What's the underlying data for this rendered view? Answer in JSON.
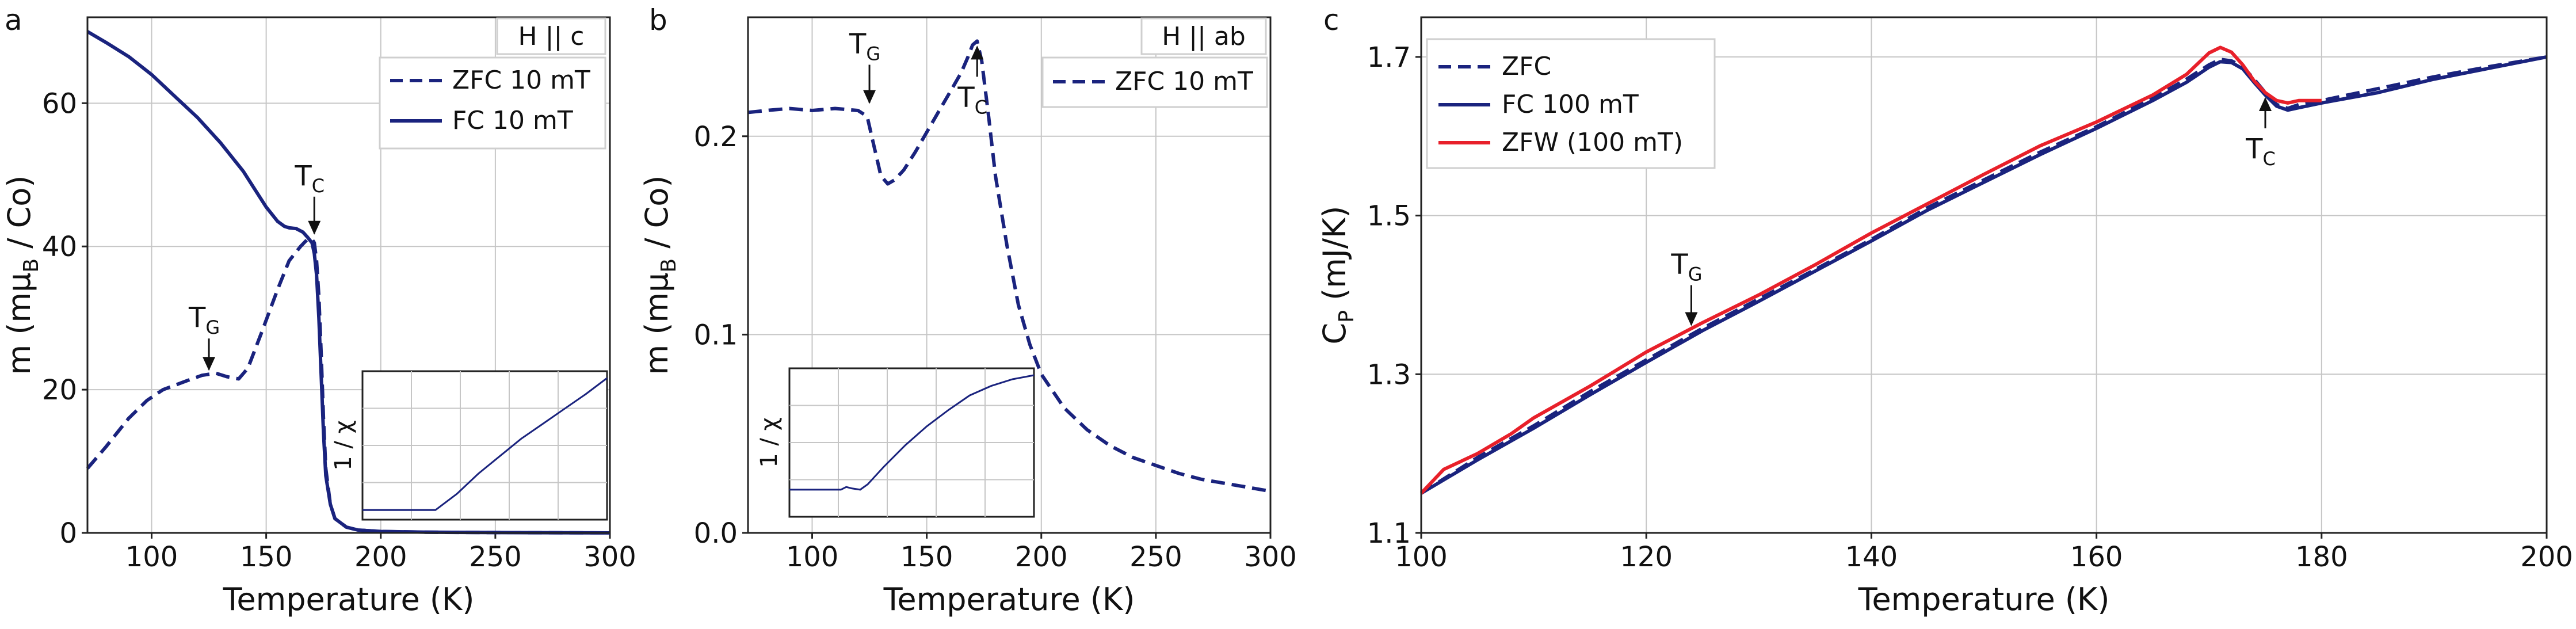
{
  "chart_data": [
    {
      "panel": "a",
      "type": "line",
      "field_label": "H || c",
      "xlabel": "Temperature (K)",
      "ylabel": "m (mμ_B / Co)",
      "ylabel_parts": [
        "m (mμ",
        "B",
        " / Co)"
      ],
      "xlim": [
        72,
        300
      ],
      "ylim": [
        0,
        72
      ],
      "xticks": [
        100,
        150,
        200,
        250,
        300
      ],
      "yticks": [
        0,
        20,
        40,
        60
      ],
      "grid": true,
      "legend": "top-right",
      "series": [
        {
          "name": "ZFC 10 mT",
          "style": "dashed",
          "color": "#1a237e",
          "x": [
            72,
            80,
            90,
            98,
            105,
            115,
            122,
            128,
            133,
            138,
            142,
            148,
            155,
            160,
            165,
            168,
            170,
            171,
            172,
            173,
            174,
            175,
            176,
            178,
            180,
            185,
            190,
            200,
            220,
            250,
            300
          ],
          "y": [
            9,
            12,
            16,
            18.5,
            20,
            21.2,
            22,
            22.3,
            21.8,
            21.5,
            23,
            28,
            34,
            38,
            40,
            41,
            41,
            40.5,
            38,
            33,
            25,
            16,
            9,
            4,
            2,
            0.8,
            0.4,
            0.2,
            0.1,
            0.05,
            0
          ]
        },
        {
          "name": "FC 10 mT",
          "style": "solid",
          "color": "#1a237e",
          "x": [
            72,
            80,
            90,
            100,
            110,
            120,
            130,
            140,
            145,
            150,
            155,
            158,
            160,
            163,
            166,
            168,
            170,
            171,
            172,
            173,
            174,
            175,
            176,
            178,
            180,
            185,
            190,
            200,
            220,
            250,
            300
          ],
          "y": [
            70,
            68.5,
            66.5,
            64,
            61,
            58,
            54.5,
            50.5,
            48,
            45.5,
            43.5,
            42.8,
            42.6,
            42.5,
            42,
            41.3,
            40.5,
            39,
            36,
            30,
            22,
            14,
            8,
            4,
            2,
            0.8,
            0.4,
            0.2,
            0.1,
            0.05,
            0
          ]
        }
      ],
      "annotations": [
        {
          "main": "T",
          "sub": "C",
          "x": 171,
          "y": 41
        },
        {
          "main": "T",
          "sub": "G",
          "x": 125,
          "y": 22
        }
      ],
      "inset": {
        "ylabel": "1 / χ",
        "series": [
          {
            "name": "1 / χ",
            "x": [
              72,
              120,
              140,
              160,
              180,
              200,
              220,
              240,
              260,
              280,
              300
            ],
            "y": [
              0.02,
              0.02,
              0.02,
              0.14,
              0.29,
              0.42,
              0.55,
              0.66,
              0.77,
              0.88,
              1.0
            ]
          }
        ]
      }
    },
    {
      "panel": "b",
      "type": "line",
      "field_label": "H || ab",
      "xlabel": "Temperature (K)",
      "ylabel": "m (mμ_B / Co)",
      "ylabel_parts": [
        "m (mμ",
        "B",
        " / Co)"
      ],
      "xlim": [
        72,
        300
      ],
      "ylim": [
        0,
        0.26
      ],
      "xticks": [
        100,
        150,
        200,
        250,
        300
      ],
      "yticks": [
        0.0,
        0.1,
        0.2
      ],
      "ytick_labels": [
        "0.0",
        "0.1",
        "0.2"
      ],
      "grid": true,
      "legend": "top-right",
      "series": [
        {
          "name": "ZFC 10 mT",
          "style": "dashed",
          "color": "#1a237e",
          "x": [
            72,
            80,
            90,
            100,
            110,
            120,
            124,
            127,
            130,
            133,
            136,
            140,
            145,
            150,
            155,
            160,
            165,
            168,
            170,
            172,
            174,
            177,
            180,
            185,
            190,
            195,
            200,
            210,
            220,
            230,
            240,
            250,
            260,
            270,
            280,
            290,
            300
          ],
          "y": [
            0.212,
            0.213,
            0.214,
            0.213,
            0.214,
            0.213,
            0.21,
            0.195,
            0.18,
            0.176,
            0.178,
            0.183,
            0.192,
            0.202,
            0.212,
            0.222,
            0.232,
            0.24,
            0.246,
            0.248,
            0.238,
            0.21,
            0.18,
            0.145,
            0.115,
            0.095,
            0.08,
            0.063,
            0.052,
            0.044,
            0.038,
            0.034,
            0.03,
            0.027,
            0.025,
            0.023,
            0.021
          ]
        }
      ],
      "annotations": [
        {
          "main": "T",
          "sub": "G",
          "x": 125,
          "y": 0.214
        },
        {
          "main": "T",
          "sub": "C",
          "x": 172,
          "y": 0.248
        }
      ],
      "inset": {
        "ylabel": "1 / χ",
        "series": [
          {
            "name": "1 / χ",
            "x": [
              72,
              110,
              120,
              125,
              130,
              138,
              145,
              160,
              180,
              200,
              220,
              240,
              260,
              280,
              300
            ],
            "y": [
              0.15,
              0.15,
              0.15,
              0.17,
              0.16,
              0.15,
              0.19,
              0.32,
              0.48,
              0.62,
              0.74,
              0.85,
              0.92,
              0.97,
              1.0
            ]
          }
        ]
      }
    },
    {
      "panel": "c",
      "type": "line",
      "xlabel": "Temperature (K)",
      "ylabel": "C_P (mJ/K)",
      "ylabel_parts": [
        "C",
        "P",
        " (mJ/K)"
      ],
      "xlim": [
        100,
        200
      ],
      "ylim": [
        1.1,
        1.75
      ],
      "xticks": [
        100,
        120,
        140,
        160,
        180,
        200
      ],
      "yticks": [
        1.1,
        1.3,
        1.5,
        1.7
      ],
      "ytick_labels": [
        "1.1",
        "1.3",
        "1.5",
        "1.7"
      ],
      "grid": true,
      "legend": "top-left",
      "series": [
        {
          "name": "ZFC",
          "style": "dashed",
          "color": "#1a237e",
          "x": [
            100,
            105,
            110,
            115,
            120,
            125,
            130,
            135,
            140,
            145,
            150,
            155,
            160,
            165,
            168,
            170,
            171,
            172,
            173,
            174,
            175,
            176,
            177,
            178,
            180,
            185,
            190,
            195,
            200
          ],
          "y": [
            1.15,
            1.195,
            1.235,
            1.278,
            1.318,
            1.358,
            1.395,
            1.432,
            1.47,
            1.51,
            1.545,
            1.58,
            1.612,
            1.648,
            1.672,
            1.69,
            1.697,
            1.695,
            1.688,
            1.672,
            1.655,
            1.64,
            1.635,
            1.64,
            1.645,
            1.66,
            1.675,
            1.688,
            1.7
          ]
        },
        {
          "name": "FC 100 mT",
          "style": "solid",
          "color": "#1a237e",
          "x": [
            100,
            105,
            110,
            115,
            120,
            125,
            130,
            135,
            140,
            145,
            150,
            155,
            160,
            165,
            168,
            170,
            171,
            172,
            173,
            174,
            175,
            176,
            177,
            178,
            180,
            185,
            190,
            195,
            200
          ],
          "y": [
            1.15,
            1.192,
            1.232,
            1.274,
            1.315,
            1.355,
            1.392,
            1.43,
            1.468,
            1.507,
            1.542,
            1.577,
            1.61,
            1.645,
            1.668,
            1.687,
            1.694,
            1.693,
            1.685,
            1.668,
            1.652,
            1.638,
            1.633,
            1.636,
            1.642,
            1.655,
            1.672,
            1.686,
            1.7
          ]
        },
        {
          "name": "ZFW (100 mT)",
          "style": "solid",
          "color": "#e8202a",
          "x": [
            100,
            102,
            105,
            108,
            110,
            115,
            120,
            125,
            130,
            135,
            140,
            145,
            150,
            155,
            160,
            165,
            168,
            170,
            171,
            172,
            173,
            174,
            175,
            176,
            177,
            178,
            180
          ],
          "y": [
            1.15,
            1.18,
            1.2,
            1.225,
            1.245,
            1.285,
            1.328,
            1.365,
            1.4,
            1.438,
            1.478,
            1.515,
            1.552,
            1.588,
            1.618,
            1.652,
            1.678,
            1.705,
            1.712,
            1.706,
            1.69,
            1.67,
            1.655,
            1.645,
            1.642,
            1.645,
            1.645
          ]
        }
      ],
      "annotations": [
        {
          "main": "T",
          "sub": "G",
          "x": 124,
          "y": 1.355
        },
        {
          "main": "T",
          "sub": "C",
          "x": 175,
          "y": 1.655
        }
      ]
    }
  ]
}
